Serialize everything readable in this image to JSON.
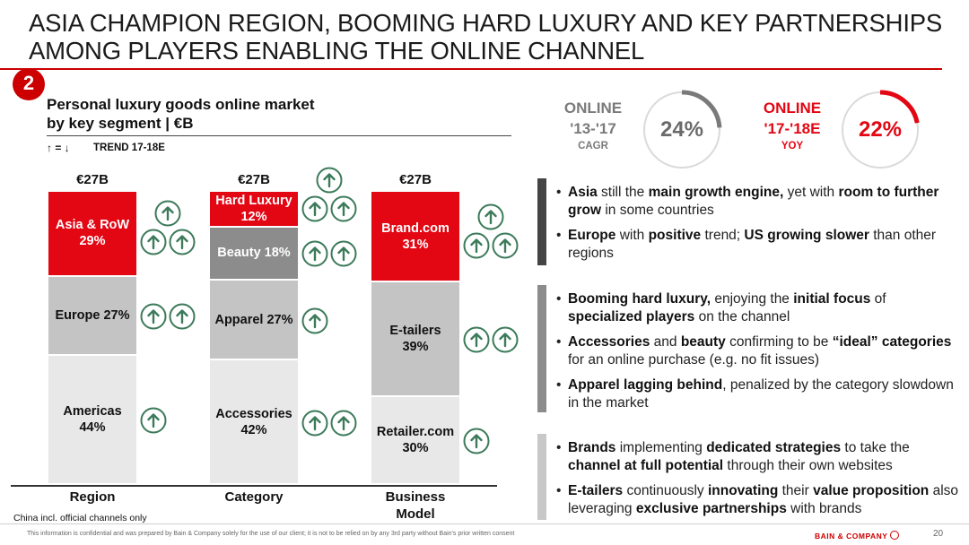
{
  "headline": [
    "ASIA CHAMPION REGION, BOOMING HARD LUXURY AND KEY PARTNERSHIPS",
    "AMONG PLAYERS ENABLING THE ONLINE CHANNEL"
  ],
  "badge": "2",
  "chart_title": [
    "Personal luxury goods online market",
    "by key segment | €B"
  ],
  "trend_symbols": "↑ = ↓",
  "trend_label": "TREND 17-18E",
  "note": "China incl. official channels only",
  "chart_data": {
    "type": "bar",
    "stacked": "100%",
    "categories": [
      "Region",
      "Category",
      "Business Model"
    ],
    "category_label_lines": [
      [
        "Region"
      ],
      [
        "Category"
      ],
      [
        "Business",
        "Model"
      ]
    ],
    "totals": [
      "€27B",
      "€27B",
      "€27B"
    ],
    "stacks": [
      [
        {
          "name": "Americas",
          "label_lines": [
            "Americas",
            "44%"
          ],
          "value": 44,
          "color": "#e8e8e8",
          "text_color": "#111111",
          "arrows": 1
        },
        {
          "name": "Europe",
          "label_lines": [
            "Europe 27%"
          ],
          "value": 27,
          "color": "#c4c4c4",
          "text_color": "#111111",
          "arrows": 2
        },
        {
          "name": "Asia & RoW",
          "label_lines": [
            "Asia & RoW",
            "29%"
          ],
          "value": 29,
          "color": "#e30613",
          "text_color": "#ffffff",
          "arrows": 3
        }
      ],
      [
        {
          "name": "Accessories",
          "label_lines": [
            "Accessories",
            "42%"
          ],
          "value": 42,
          "color": "#e8e8e8",
          "text_color": "#111111",
          "arrows": 2
        },
        {
          "name": "Apparel",
          "label_lines": [
            "Apparel 27%"
          ],
          "value": 27,
          "color": "#c4c4c4",
          "text_color": "#111111",
          "arrows": 1
        },
        {
          "name": "Beauty",
          "label_lines": [
            "Beauty 18%"
          ],
          "value": 18,
          "color": "#8c8c8c",
          "text_color": "#ffffff",
          "arrows": 2
        },
        {
          "name": "Hard Luxury",
          "label_lines": [
            "Hard Luxury",
            "12%"
          ],
          "value": 12,
          "color": "#e30613",
          "text_color": "#ffffff",
          "arrows": 3
        }
      ],
      [
        {
          "name": "Retailer.com",
          "label_lines": [
            "Retailer.com",
            "30%"
          ],
          "value": 30,
          "color": "#e8e8e8",
          "text_color": "#111111",
          "arrows": 1
        },
        {
          "name": "E-tailers",
          "label_lines": [
            "E-tailers",
            "39%"
          ],
          "value": 39,
          "color": "#c4c4c4",
          "text_color": "#111111",
          "arrows": 2
        },
        {
          "name": "Brand.com",
          "label_lines": [
            "Brand.com",
            "31%"
          ],
          "value": 31,
          "color": "#e30613",
          "text_color": "#ffffff",
          "arrows": 3
        }
      ]
    ],
    "arrow_color": "#3c7a5a"
  },
  "kpis": [
    {
      "title": "ONLINE",
      "period": "'13-'17",
      "metric": "CAGR",
      "value": "24%",
      "fraction": 0.24,
      "color": "#7a7a7a"
    },
    {
      "title": "ONLINE",
      "period": "'17-'18E",
      "metric": "YOY",
      "value": "22%",
      "fraction": 0.22,
      "color": "#e30613"
    }
  ],
  "bullet_groups": [
    {
      "bar_color": "#444444",
      "bullets": [
        [
          {
            "t": "Asia",
            "b": true
          },
          {
            "t": " still the ",
            "b": false
          },
          {
            "t": "main growth engine,",
            "b": true
          },
          {
            "t": " yet with ",
            "b": false
          },
          {
            "t": "room to further grow",
            "b": true
          },
          {
            "t": " in some countries",
            "b": false
          }
        ],
        [
          {
            "t": "Europe",
            "b": true
          },
          {
            "t": " with ",
            "b": false
          },
          {
            "t": "positive",
            "b": true
          },
          {
            "t": " trend; ",
            "b": false
          },
          {
            "t": "US growing slower",
            "b": true
          },
          {
            "t": " than other regions",
            "b": false
          }
        ]
      ]
    },
    {
      "bar_color": "#8c8c8c",
      "bullets": [
        [
          {
            "t": "Booming hard luxury,",
            "b": true
          },
          {
            "t": " enjoying the ",
            "b": false
          },
          {
            "t": "initial focus",
            "b": true
          },
          {
            "t": " of ",
            "b": false
          },
          {
            "t": "specialized players",
            "b": true
          },
          {
            "t": " on the channel",
            "b": false
          }
        ],
        [
          {
            "t": "Accessories",
            "b": true
          },
          {
            "t": " and ",
            "b": false
          },
          {
            "t": "beauty",
            "b": true
          },
          {
            "t": " confirming to be ",
            "b": false
          },
          {
            "t": "“ideal” categories",
            "b": true
          },
          {
            "t": " for an online purchase (e.g. no fit issues)",
            "b": false
          }
        ],
        [
          {
            "t": "Apparel lagging behind",
            "b": true
          },
          {
            "t": ", penalized by the category slowdown in the market",
            "b": false
          }
        ]
      ]
    },
    {
      "bar_color": "#c8c8c8",
      "bullets": [
        [
          {
            "t": "Brands",
            "b": true
          },
          {
            "t": " implementing ",
            "b": false
          },
          {
            "t": "dedicated strategies",
            "b": true
          },
          {
            "t": " to take the ",
            "b": false
          },
          {
            "t": "channel at full potential",
            "b": true
          },
          {
            "t": " through their own websites",
            "b": false
          }
        ],
        [
          {
            "t": "E-tailers",
            "b": true
          },
          {
            "t": " continuously ",
            "b": false
          },
          {
            "t": "innovating",
            "b": true
          },
          {
            "t": " their ",
            "b": false
          },
          {
            "t": "value proposition",
            "b": true
          },
          {
            "t": " also leveraging ",
            "b": false
          },
          {
            "t": "exclusive partnerships",
            "b": true
          },
          {
            "t": " with brands",
            "b": false
          }
        ]
      ]
    }
  ],
  "footer": "This information is confidential and was prepared by Bain & Company solely for the use of our client; it is not to be relied on by any 3rd party without Bain's prior written consent",
  "brand": "BAIN & COMPANY",
  "page_number": "20"
}
